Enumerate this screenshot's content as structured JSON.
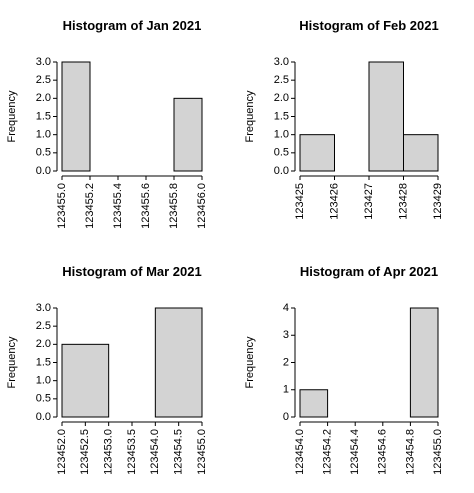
{
  "chart_data": [
    {
      "type": "histogram",
      "title": "Histogram of Jan 2021",
      "ylabel": "Frequency",
      "color": "#d3d3d3",
      "bins": [
        123455.0,
        123455.2,
        123455.4,
        123455.6,
        123455.8,
        123456.0
      ],
      "counts": [
        3,
        0,
        0,
        0,
        2
      ],
      "xlim": [
        123455.0,
        123456.0
      ],
      "ylim": [
        0,
        3
      ],
      "xticks": [
        {
          "value": 123455,
          "label": "123455.0"
        },
        123455.2,
        123455.4,
        123455.6,
        123455.8,
        {
          "value": 123456,
          "label": "123456.0"
        }
      ],
      "yticks": [
        {
          "value": 0,
          "label": "0.0"
        },
        0.5,
        {
          "value": 1,
          "label": "1.0"
        },
        1.5,
        {
          "value": 2,
          "label": "2.0"
        },
        2.5,
        {
          "value": 3,
          "label": "3.0"
        }
      ]
    },
    {
      "type": "histogram",
      "title": "Histogram of Feb 2021",
      "ylabel": "Frequency",
      "color": "#d3d3d3",
      "bins": [
        123425,
        123426,
        123427,
        123428,
        123429
      ],
      "counts": [
        1,
        0,
        3,
        1
      ],
      "xlim": [
        123425,
        123429
      ],
      "ylim": [
        0,
        3
      ],
      "xticks": [
        123425,
        123426,
        123427,
        123428,
        123429
      ],
      "yticks": [
        {
          "value": 0,
          "label": "0.0"
        },
        0.5,
        {
          "value": 1,
          "label": "1.0"
        },
        1.5,
        {
          "value": 2,
          "label": "2.0"
        },
        2.5,
        {
          "value": 3,
          "label": "3.0"
        }
      ]
    },
    {
      "type": "histogram",
      "title": "Histogram of Mar 2021",
      "ylabel": "Frequency",
      "color": "#d3d3d3",
      "bins": [
        123452,
        123453,
        123454,
        123455
      ],
      "counts": [
        2,
        0,
        3
      ],
      "xlim": [
        123452,
        123455
      ],
      "ylim": [
        0,
        3
      ],
      "xticks": [
        {
          "value": 123452,
          "label": "123452.0"
        },
        123452.5,
        {
          "value": 123453,
          "label": "123453.0"
        },
        123453.5,
        {
          "value": 123454,
          "label": "123454.0"
        },
        123454.5,
        {
          "value": 123455,
          "label": "123455.0"
        }
      ],
      "yticks": [
        {
          "value": 0,
          "label": "0.0"
        },
        0.5,
        {
          "value": 1,
          "label": "1.0"
        },
        1.5,
        {
          "value": 2,
          "label": "2.0"
        },
        2.5,
        {
          "value": 3,
          "label": "3.0"
        }
      ]
    },
    {
      "type": "histogram",
      "title": "Histogram of Apr 2021",
      "ylabel": "Frequency",
      "color": "#d3d3d3",
      "bins": [
        123454.0,
        123454.2,
        123454.4,
        123454.6,
        123454.8,
        123455.0
      ],
      "counts": [
        1,
        0,
        0,
        0,
        4
      ],
      "xlim": [
        123454.0,
        123455.0
      ],
      "ylim": [
        0,
        4
      ],
      "xticks": [
        {
          "value": 123454,
          "label": "123454.0"
        },
        123454.2,
        123454.4,
        123454.6,
        123454.8,
        {
          "value": 123455,
          "label": "123455.0"
        }
      ],
      "yticks": [
        0,
        1,
        2,
        3,
        4
      ]
    }
  ]
}
